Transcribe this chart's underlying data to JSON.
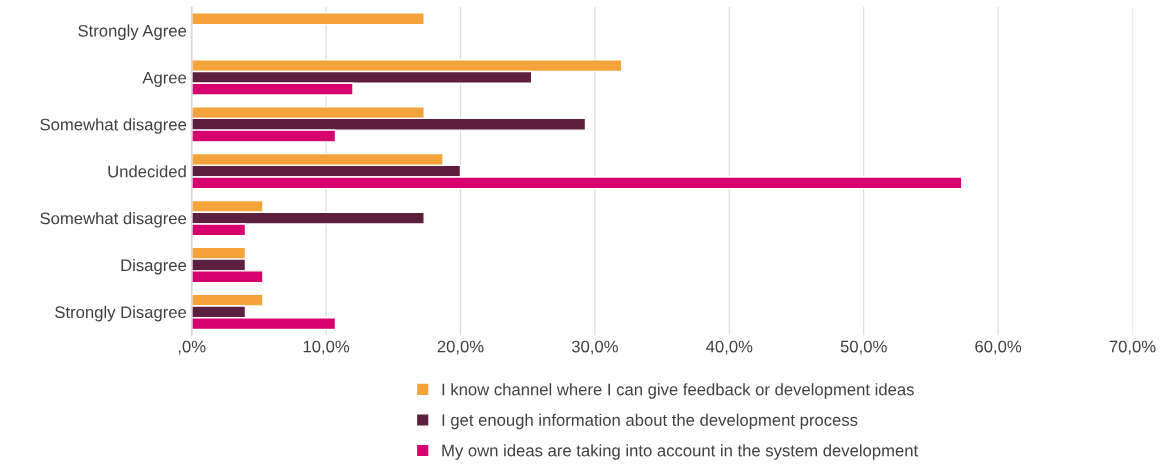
{
  "chart_data": {
    "type": "bar",
    "orientation": "horizontal",
    "categories": [
      "Strongly Agree",
      "Agree",
      "Somewhat disagree",
      "Undecided",
      "Somewhat disagree",
      "Disagree",
      "Strongly Disagree"
    ],
    "series": [
      {
        "name": "I know channel where I can give feedback or development ideas",
        "color": "#f4a23a",
        "values": [
          17.3,
          32.0,
          17.3,
          18.7,
          5.3,
          4.0,
          5.3
        ]
      },
      {
        "name": "I get enough information about the development process",
        "color": "#5c1f3f",
        "values": [
          null,
          25.3,
          29.3,
          20.0,
          17.3,
          4.0,
          4.0
        ]
      },
      {
        "name": "My own ideas are taking into account in the system development",
        "color": "#d6006f",
        "values": [
          null,
          12.0,
          10.7,
          57.3,
          4.0,
          5.3,
          10.7
        ]
      }
    ],
    "xlim": [
      0,
      70
    ],
    "xticks": [
      {
        "value": 0,
        "label": ",0%"
      },
      {
        "value": 10,
        "label": "10,0%"
      },
      {
        "value": 20,
        "label": "20,0%"
      },
      {
        "value": 30,
        "label": "30,0%"
      },
      {
        "value": 40,
        "label": "40,0%"
      },
      {
        "value": 50,
        "label": "50,0%"
      },
      {
        "value": 60,
        "label": "60,0%"
      },
      {
        "value": 70,
        "label": "70,0%"
      }
    ],
    "grid": "x",
    "legend": "bottom"
  }
}
